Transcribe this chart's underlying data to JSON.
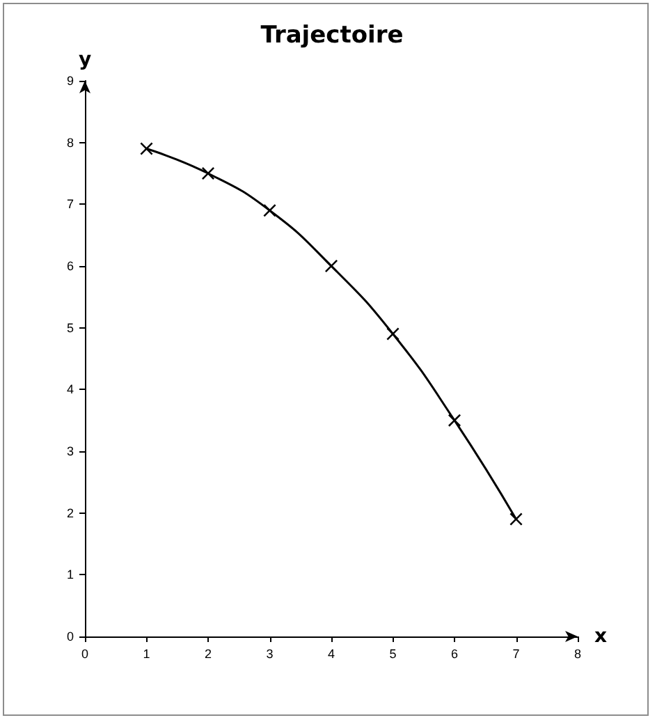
{
  "chart_data": {
    "type": "line",
    "title": "Trajectoire",
    "xlabel": "x",
    "ylabel": "y",
    "x": [
      1,
      2,
      3,
      4,
      5,
      6,
      7
    ],
    "series": [
      {
        "color": "#000000",
        "values": [
          7.9,
          7.5,
          6.9,
          6,
          4.9,
          3.5,
          1.9
        ]
      }
    ],
    "xlim": [
      0,
      8
    ],
    "xticks": [
      0,
      1,
      2,
      3,
      4,
      5,
      6,
      7,
      8
    ],
    "ylim": [
      0,
      9
    ],
    "yticks": [
      0,
      1,
      2,
      3,
      4,
      5,
      6,
      7,
      8,
      9
    ],
    "grid": false,
    "marker": "cross",
    "line_style": "solid"
  }
}
